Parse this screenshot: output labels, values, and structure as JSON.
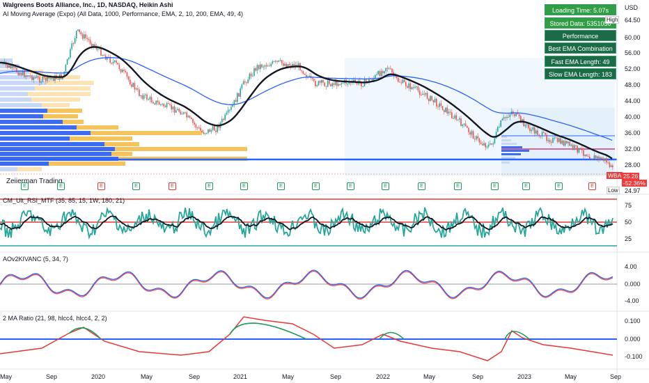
{
  "header": {
    "symbol_line": "Walgreens Boots Alliance, Inc., 1D, NASDAQ, Heikin Ashi",
    "indicator_line": "AI Moving Average (Expo) (All Data, 1000, Performance, EMA, 2, 10, 200, EMA, 49, 4)",
    "watermark": "Zeiierman Trading"
  },
  "info_panel": [
    {
      "label": "Loading Time: 5.07s"
    },
    {
      "label": "Stored Data: 5351050"
    },
    {
      "label": "Performance"
    },
    {
      "label": "Best EMA Combination"
    },
    {
      "label": "Fast EMA Length: 49"
    },
    {
      "label": "Slow EMA Length: 183"
    }
  ],
  "price_axis": {
    "currency": "USD",
    "high_label": "High",
    "low_label": "Low",
    "ticks": [
      "64.50",
      "60.00",
      "56.00",
      "52.00",
      "48.00",
      "44.00",
      "40.00",
      "36.00",
      "32.00",
      "28.00",
      "24.97"
    ],
    "last_symbol": "WBA",
    "last_price": "25.26",
    "last_change": "-52.36%"
  },
  "panes": {
    "rsi": {
      "title": "CM_Ult_RSI_MTF (35, 85, 15, 1W, 180, 21)",
      "ticks": [
        "75",
        "50",
        "25"
      ]
    },
    "ao": {
      "title": "AOv2KIVANC (5, 34, 7)",
      "ticks": [
        "4.00",
        "0.000",
        "-4.00"
      ]
    },
    "ma_ratio": {
      "title": "2 MA Ratio (21, 98, hlcc4, hlcc4, 2, 2)",
      "ticks": [
        "0.100",
        "0.000",
        "-0.100"
      ]
    }
  },
  "time_axis": [
    "May",
    "Sep",
    "2020",
    "May",
    "Sep",
    "2021",
    "May",
    "Sep",
    "2022",
    "May",
    "Sep",
    "2023",
    "May",
    "Sep"
  ],
  "earnings_markers": [
    "E",
    "E",
    "E",
    "E",
    "E",
    "E",
    "E",
    "E",
    "E",
    "E",
    "E",
    "E",
    "E",
    "E",
    "E",
    "E",
    "E"
  ],
  "colors": {
    "bull": "#26a69a",
    "bear": "#ef5350",
    "ema_fast": "#131722",
    "ema_slow": "#2962ff",
    "support": "#2962ff",
    "rsi_line": "#26a69a",
    "ao_up": "#2962ff",
    "ao_down": "#ef5350",
    "ratio_up": "#1b9a5a",
    "ratio_down": "#e53935",
    "panel_bg": "#1b6b46"
  }
}
